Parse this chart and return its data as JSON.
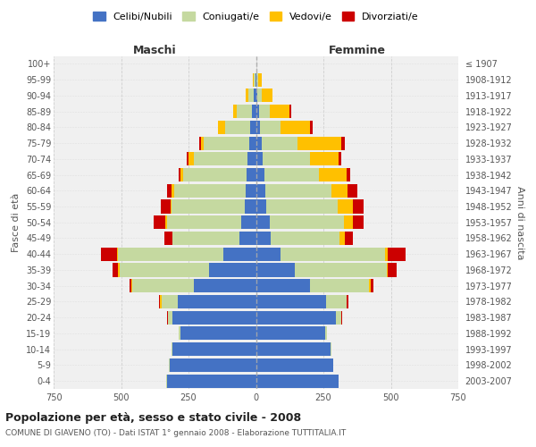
{
  "age_groups": [
    "0-4",
    "5-9",
    "10-14",
    "15-19",
    "20-24",
    "25-29",
    "30-34",
    "35-39",
    "40-44",
    "45-49",
    "50-54",
    "55-59",
    "60-64",
    "65-69",
    "70-74",
    "75-79",
    "80-84",
    "85-89",
    "90-94",
    "95-99",
    "100+"
  ],
  "birth_years": [
    "2003-2007",
    "1998-2002",
    "1993-1997",
    "1988-1992",
    "1983-1987",
    "1978-1982",
    "1973-1977",
    "1968-1972",
    "1963-1967",
    "1958-1962",
    "1953-1957",
    "1948-1952",
    "1943-1947",
    "1938-1942",
    "1933-1937",
    "1928-1932",
    "1923-1927",
    "1918-1922",
    "1913-1917",
    "1908-1912",
    "≤ 1907"
  ],
  "male": {
    "celibi": [
      330,
      320,
      310,
      280,
      310,
      290,
      230,
      175,
      120,
      60,
      55,
      42,
      38,
      35,
      30,
      25,
      20,
      15,
      8,
      3,
      0
    ],
    "coniugati": [
      2,
      2,
      3,
      5,
      15,
      60,
      230,
      330,
      390,
      250,
      275,
      270,
      265,
      235,
      200,
      170,
      95,
      55,
      20,
      5,
      0
    ],
    "vedovi": [
      0,
      0,
      0,
      0,
      2,
      5,
      2,
      5,
      5,
      0,
      5,
      5,
      10,
      10,
      20,
      10,
      25,
      15,
      10,
      5,
      0
    ],
    "divorziati": [
      0,
      0,
      0,
      0,
      2,
      5,
      5,
      20,
      60,
      30,
      45,
      35,
      15,
      8,
      5,
      5,
      2,
      0,
      0,
      0,
      0
    ]
  },
  "female": {
    "nubili": [
      305,
      285,
      275,
      255,
      295,
      260,
      200,
      145,
      90,
      55,
      50,
      38,
      35,
      30,
      25,
      20,
      15,
      10,
      5,
      3,
      0
    ],
    "coniugate": [
      2,
      3,
      4,
      8,
      20,
      75,
      220,
      340,
      390,
      255,
      275,
      265,
      245,
      205,
      175,
      135,
      75,
      40,
      15,
      5,
      0
    ],
    "vedove": [
      0,
      0,
      0,
      0,
      2,
      2,
      5,
      5,
      10,
      20,
      35,
      55,
      60,
      100,
      105,
      160,
      110,
      75,
      40,
      15,
      2
    ],
    "divorziate": [
      0,
      0,
      0,
      0,
      2,
      5,
      10,
      30,
      65,
      30,
      40,
      40,
      35,
      15,
      10,
      15,
      10,
      5,
      0,
      0,
      0
    ]
  },
  "colors": {
    "celibi": "#4472c4",
    "coniugati": "#c5d9a0",
    "vedovi": "#ffc000",
    "divorziati": "#cc0000"
  },
  "xlim": 750,
  "title": "Popolazione per età, sesso e stato civile - 2008",
  "subtitle": "COMUNE DI GIAVENO (TO) - Dati ISTAT 1° gennaio 2008 - Elaborazione TUTTITALIA.IT",
  "ylabel": "Fasce di età",
  "ylabel_right": "Anni di nascita",
  "legend_labels": [
    "Celibi/Nubili",
    "Coniugati/e",
    "Vedovi/e",
    "Divorziati/e"
  ],
  "maschi_label": "Maschi",
  "femmine_label": "Femmine",
  "bg_color": "#ffffff",
  "plot_bg_color": "#f0f0f0"
}
